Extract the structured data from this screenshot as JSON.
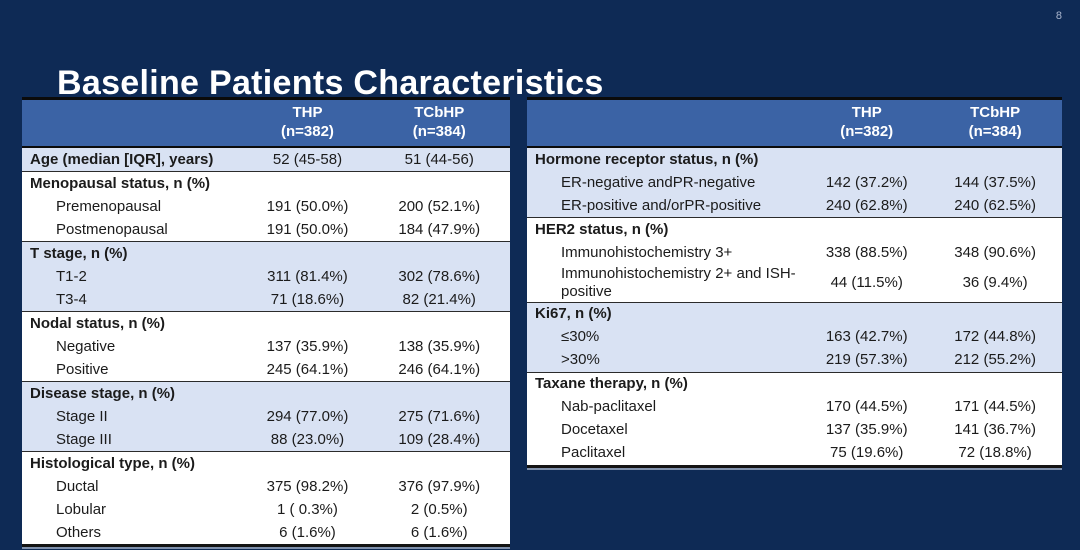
{
  "slide": {
    "title": "Baseline Patients Characteristics",
    "page_number": "8",
    "colors": {
      "background": "#0E2A55",
      "table_header_bg": "#3B63A5",
      "shaded_row_band": "#D9E2F3",
      "plain_row_band": "#FFFFFF",
      "title_text": "#FFFFFF",
      "table_text": "#1B1B1B"
    }
  },
  "tables": [
    {
      "name": "baseline-characteristics-left",
      "header": {
        "thp": "THP",
        "thp_n": "(n=382)",
        "tcbhp": "TCbHP",
        "tcbhp_n": "(n=384)"
      },
      "groups": [
        {
          "label": "Age (median [IQR], years)",
          "shaded": true,
          "thp": "52 (45-58)",
          "tcbhp": "51 (44-56)",
          "rows": []
        },
        {
          "label": "Menopausal status, n (%)",
          "shaded": false,
          "thp": "",
          "tcbhp": "",
          "rows": [
            {
              "label": "Premenopausal",
              "thp": "191 (50.0%)",
              "tcbhp": "200 (52.1%)"
            },
            {
              "label": "Postmenopausal",
              "thp": "191 (50.0%)",
              "tcbhp": "184 (47.9%)"
            }
          ]
        },
        {
          "label": "T stage, n (%)",
          "shaded": true,
          "thp": "",
          "tcbhp": "",
          "rows": [
            {
              "label": "T1-2",
              "thp": "311 (81.4%)",
              "tcbhp": "302 (78.6%)"
            },
            {
              "label": "T3-4",
              "thp": "71 (18.6%)",
              "tcbhp": "82 (21.4%)"
            }
          ]
        },
        {
          "label": "Nodal status, n (%)",
          "shaded": false,
          "thp": "",
          "tcbhp": "",
          "rows": [
            {
              "label": "Negative",
              "thp": "137 (35.9%)",
              "tcbhp": "138 (35.9%)"
            },
            {
              "label": "Positive",
              "thp": "245 (64.1%)",
              "tcbhp": "246 (64.1%)"
            }
          ]
        },
        {
          "label": "Disease stage, n (%)",
          "shaded": true,
          "thp": "",
          "tcbhp": "",
          "rows": [
            {
              "label": "Stage II",
              "thp": "294 (77.0%)",
              "tcbhp": "275 (71.6%)"
            },
            {
              "label": "Stage III",
              "thp": "88 (23.0%)",
              "tcbhp": "109 (28.4%)"
            }
          ]
        },
        {
          "label": "Histological type, n (%)",
          "shaded": false,
          "thp": "",
          "tcbhp": "",
          "rows": [
            {
              "label": "Ductal",
              "thp": "375 (98.2%)",
              "tcbhp": "376 (97.9%)"
            },
            {
              "label": "Lobular",
              "thp": "1 ( 0.3%)",
              "tcbhp": "2 (0.5%)"
            },
            {
              "label": "Others",
              "thp": "6 (1.6%)",
              "tcbhp": "6 (1.6%)"
            }
          ]
        }
      ]
    },
    {
      "name": "baseline-characteristics-right",
      "header": {
        "thp": "THP",
        "thp_n": "(n=382)",
        "tcbhp": "TCbHP",
        "tcbhp_n": "(n=384)"
      },
      "groups": [
        {
          "label": "Hormone receptor status, n (%)",
          "shaded": true,
          "thp": "",
          "tcbhp": "",
          "rows": [
            {
              "label": "ER-negative andPR-negative",
              "thp": "142 (37.2%)",
              "tcbhp": "144 (37.5%)"
            },
            {
              "label": "ER-positive and/orPR-positive",
              "thp": "240 (62.8%)",
              "tcbhp": "240 (62.5%)"
            }
          ]
        },
        {
          "label": "HER2 status, n (%)",
          "shaded": false,
          "thp": "",
          "tcbhp": "",
          "rows": [
            {
              "label": "Immunohistochemistry 3+",
              "thp": "338 (88.5%)",
              "tcbhp": "348 (90.6%)"
            },
            {
              "label": "Immunohistochemistry 2+ and ISH-positive",
              "thp": "44 (11.5%)",
              "tcbhp": "36 (9.4%)"
            }
          ]
        },
        {
          "label": "Ki67, n (%)",
          "shaded": true,
          "thp": "",
          "tcbhp": "",
          "rows": [
            {
              "label": "≤30%",
              "thp": "163 (42.7%)",
              "tcbhp": "172 (44.8%)"
            },
            {
              "label": ">30%",
              "thp": "219 (57.3%)",
              "tcbhp": "212 (55.2%)"
            }
          ]
        },
        {
          "label": "Taxane therapy, n (%)",
          "shaded": false,
          "thp": "",
          "tcbhp": "",
          "rows": [
            {
              "label": "Nab-paclitaxel",
              "thp": "170 (44.5%)",
              "tcbhp": "171 (44.5%)"
            },
            {
              "label": "Docetaxel",
              "thp": "137 (35.9%)",
              "tcbhp": "141 (36.7%)"
            },
            {
              "label": "Paclitaxel",
              "thp": "75 (19.6%)",
              "tcbhp": "72 (18.8%)"
            }
          ]
        }
      ]
    }
  ]
}
